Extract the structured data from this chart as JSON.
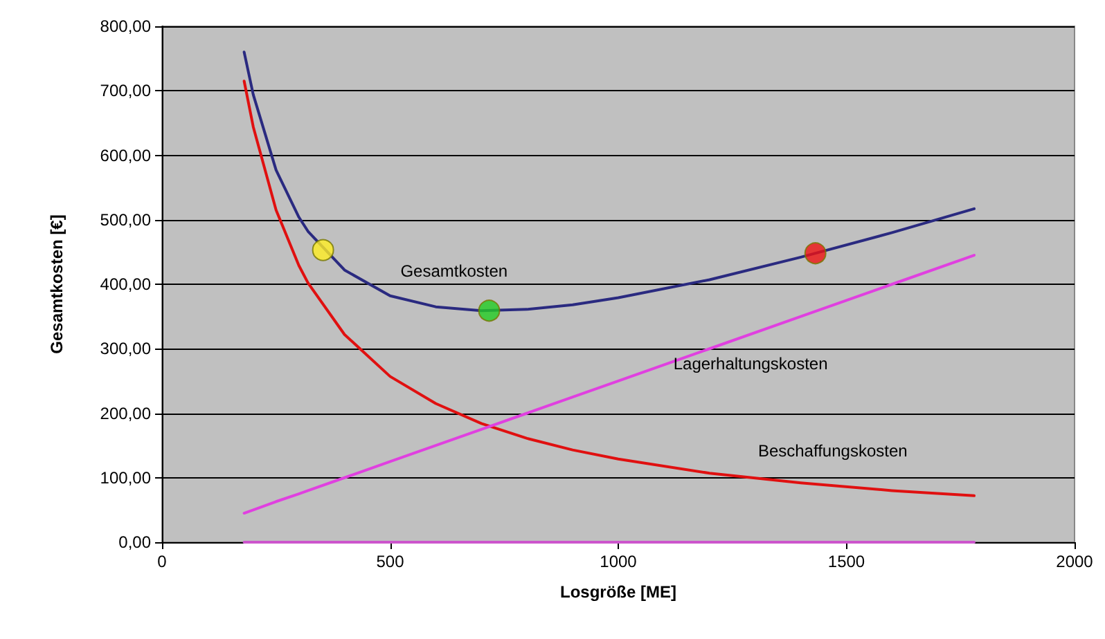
{
  "chart_data": {
    "type": "line",
    "xlabel": "Losgröße [ME]",
    "ylabel": "Gesamtkosten [€]",
    "xlim": [
      0,
      2000
    ],
    "xticks": [
      0,
      500,
      1000,
      1500,
      2000
    ],
    "ylim": [
      0,
      800
    ],
    "yticks": [
      {
        "value": 0,
        "label": "0,00"
      },
      {
        "value": 100,
        "label": "100,00"
      },
      {
        "value": 200,
        "label": "200,00"
      },
      {
        "value": 300,
        "label": "300,00"
      },
      {
        "value": 400,
        "label": "400,00"
      },
      {
        "value": 500,
        "label": "500,00"
      },
      {
        "value": 600,
        "label": "600,00"
      },
      {
        "value": 700,
        "label": "700,00"
      },
      {
        "value": 800,
        "label": "800,00"
      }
    ],
    "grid": "y",
    "legend": false,
    "marker": "none",
    "line_style": "solid",
    "x": [
      180,
      200,
      250,
      300,
      320,
      400,
      500,
      600,
      700,
      800,
      900,
      1000,
      1200,
      1400,
      1600,
      1780
    ],
    "series": [
      {
        "name": "Gesamtkosten",
        "color": "#2a2a80",
        "values": [
          760,
          694,
          577,
          504,
          482,
          422,
          382,
          365,
          359,
          361,
          368,
          379,
          407,
          442,
          480,
          517
        ]
      },
      {
        "name": "Beschaffungskosten",
        "color": "#e01010",
        "values": [
          715,
          644,
          515,
          429,
          402,
          322,
          257,
          215,
          184,
          161,
          143,
          129,
          107,
          92,
          80,
          72
        ]
      },
      {
        "name": "Lagerhaltungskosten",
        "color": "#e040e0",
        "values": [
          45,
          50,
          63,
          75,
          80,
          100,
          125,
          150,
          175,
          200,
          225,
          250,
          300,
          350,
          400,
          445
        ]
      },
      {
        "color": "#cc55cc",
        "values": [
          0,
          0,
          0,
          0,
          0,
          0,
          0,
          0,
          0,
          0,
          0,
          0,
          0,
          0,
          0,
          0
        ]
      },
      {
        "type": "scatter",
        "marker": "circle",
        "x": [
          353,
          717,
          1432
        ],
        "colors": [
          "#ffee22",
          "#22cc22",
          "#ee1111"
        ],
        "values": [
          453,
          359,
          448
        ]
      }
    ]
  }
}
